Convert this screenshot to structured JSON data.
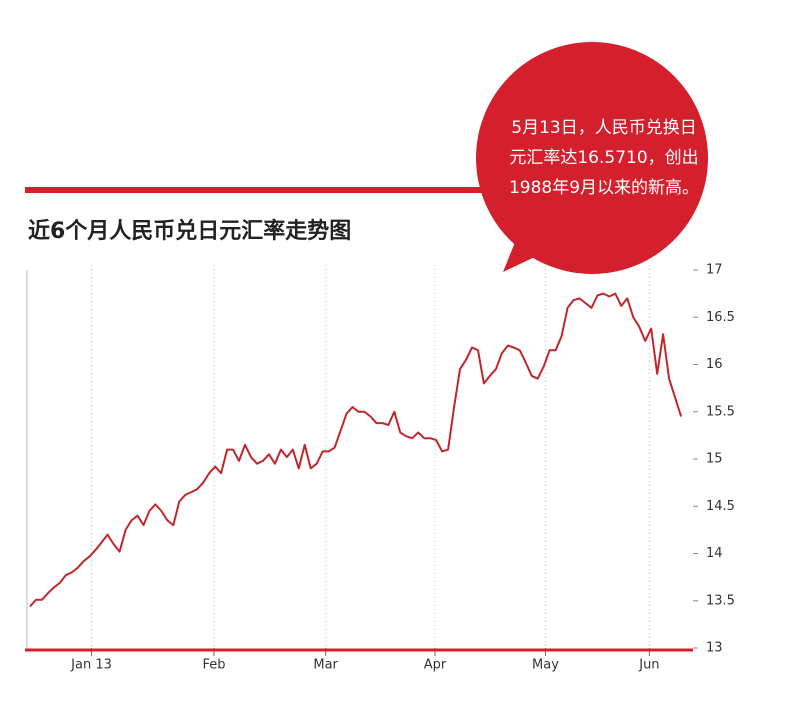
{
  "chart_data": {
    "type": "line",
    "title": "近6个月人民币兑日元汇率走势图",
    "annotation": [
      "5月13日，人民币兑换日",
      "元汇率达16.5710，创出",
      "1988年9月以来的新高。"
    ],
    "series": [
      {
        "name": null,
        "color": "#c0272d",
        "values": [
          13.44,
          13.51,
          13.51,
          13.58,
          13.64,
          13.69,
          13.77,
          13.8,
          13.85,
          13.92,
          13.97,
          14.04,
          14.12,
          14.2,
          14.1,
          14.02,
          14.25,
          14.35,
          14.4,
          14.3,
          14.45,
          14.52,
          14.45,
          14.35,
          14.3,
          14.55,
          14.62,
          14.65,
          14.68,
          14.75,
          14.85,
          14.92,
          14.85,
          15.1,
          15.1,
          14.98,
          15.15,
          15.02,
          14.95,
          14.98,
          15.05,
          14.95,
          15.1,
          15.02,
          15.1,
          14.9,
          15.15,
          14.9,
          14.95,
          15.08,
          15.08,
          15.12,
          15.3,
          15.48,
          15.55,
          15.5,
          15.5,
          15.45,
          15.38,
          15.38,
          15.36,
          15.5,
          15.28,
          15.24,
          15.22,
          15.28,
          15.22,
          15.22,
          15.2,
          15.08,
          15.1,
          15.55,
          15.95,
          16.05,
          16.18,
          16.15,
          15.8,
          15.88,
          15.95,
          16.12,
          16.2,
          16.18,
          16.15,
          16.02,
          15.88,
          15.85,
          15.98,
          16.15,
          16.15,
          16.3,
          16.6,
          16.68,
          16.7,
          16.65,
          16.6,
          16.73,
          16.75,
          16.72,
          16.75,
          16.62,
          16.7,
          16.5,
          16.4,
          16.25,
          16.38,
          15.9,
          16.32,
          15.85,
          15.65,
          15.45
        ]
      }
    ],
    "xlim": [
      -0.5,
      111
    ],
    "xticks": [
      {
        "value": 10.3,
        "label": "Jan 13"
      },
      {
        "value": 30.8,
        "label": "Feb"
      },
      {
        "value": 49.5,
        "label": "Mar"
      },
      {
        "value": 67.8,
        "label": "Apr"
      },
      {
        "value": 86.3,
        "label": "May"
      },
      {
        "value": 103.7,
        "label": "Jun"
      }
    ],
    "ylim": [
      13,
      17
    ],
    "yticks": [
      13,
      13.5,
      14,
      14.5,
      15,
      15.5,
      16,
      16.5,
      17
    ],
    "grid": true
  }
}
